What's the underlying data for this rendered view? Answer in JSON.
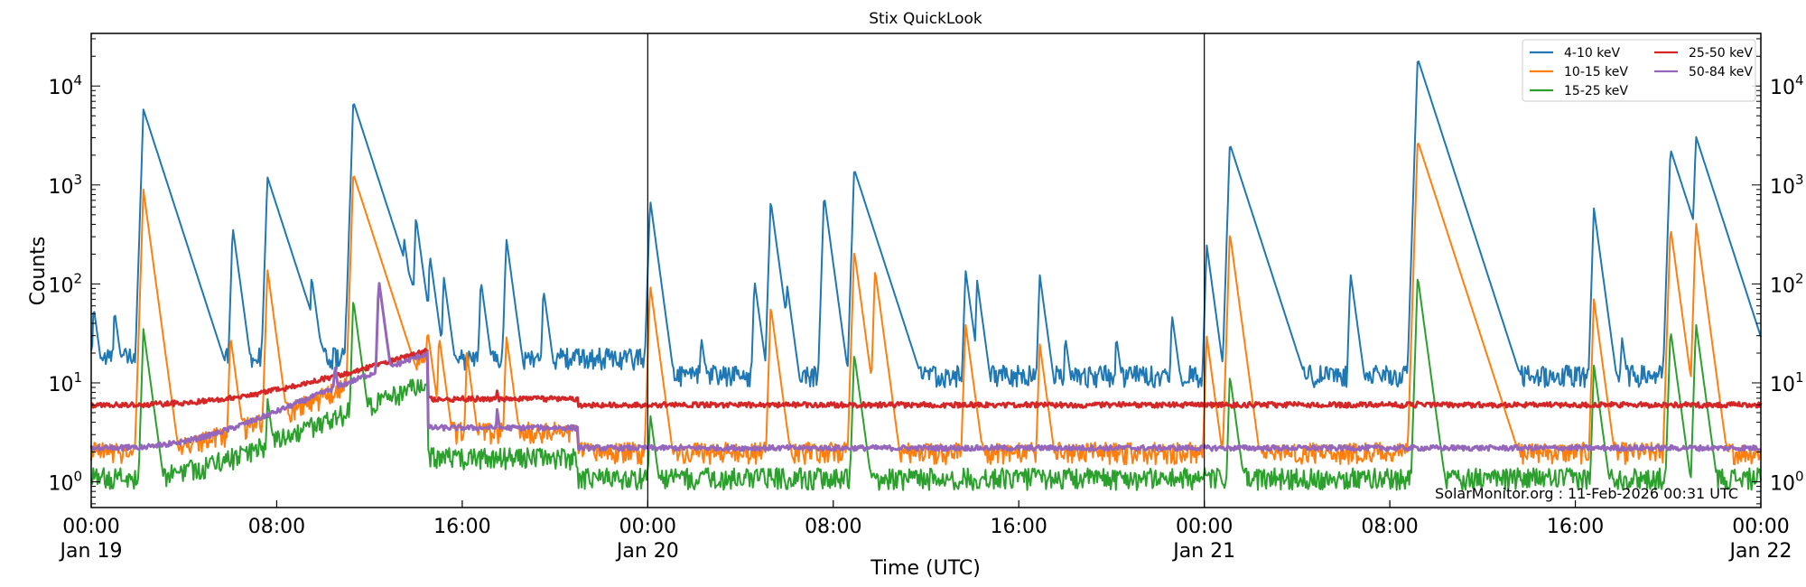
{
  "chart_data": {
    "type": "line",
    "title": "Stix QuickLook",
    "xlabel": "Time (UTC)",
    "ylabel": "Counts",
    "yscale": "log",
    "ylim": [
      0.55,
      34000
    ],
    "xlim_hours": [
      0,
      72
    ],
    "grid": false,
    "legend_position": "upper right",
    "legend_columns": 2,
    "x_ticks": [
      {
        "hour": 0,
        "label": "00:00",
        "sublabel": "Jan 19"
      },
      {
        "hour": 8,
        "label": "08:00",
        "sublabel": ""
      },
      {
        "hour": 16,
        "label": "16:00",
        "sublabel": ""
      },
      {
        "hour": 24,
        "label": "00:00",
        "sublabel": "Jan 20"
      },
      {
        "hour": 32,
        "label": "08:00",
        "sublabel": ""
      },
      {
        "hour": 40,
        "label": "16:00",
        "sublabel": ""
      },
      {
        "hour": 48,
        "label": "00:00",
        "sublabel": "Jan 21"
      },
      {
        "hour": 56,
        "label": "08:00",
        "sublabel": ""
      },
      {
        "hour": 64,
        "label": "16:00",
        "sublabel": ""
      },
      {
        "hour": 72,
        "label": "00:00",
        "sublabel": "Jan 22"
      }
    ],
    "y_ticks": [
      {
        "exp": 0,
        "label": "10",
        "sup": "0"
      },
      {
        "exp": 1,
        "label": "10",
        "sup": "1"
      },
      {
        "exp": 2,
        "label": "10",
        "sup": "2"
      },
      {
        "exp": 3,
        "label": "10",
        "sup": "3"
      },
      {
        "exp": 4,
        "label": "10",
        "sup": "4"
      }
    ],
    "day_separators_hours": [
      24,
      48
    ],
    "series": [
      {
        "name": "4-10 keV",
        "color": "#1f77b4",
        "baseline": 12,
        "peaks": [
          [
            0.1,
            60
          ],
          [
            1,
            55
          ],
          [
            2,
            45
          ],
          [
            2.2,
            520
          ],
          [
            2.25,
            5800
          ],
          [
            2.5,
            1600
          ],
          [
            6.1,
            380
          ],
          [
            7.6,
            1200
          ],
          [
            9.0,
            70
          ],
          [
            9.5,
            120
          ],
          [
            11.0,
            60
          ],
          [
            11.3,
            7000
          ],
          [
            11.6,
            250
          ],
          [
            12.5,
            280
          ],
          [
            13.0,
            300
          ],
          [
            13.5,
            280
          ],
          [
            14.0,
            480
          ],
          [
            14.6,
            200
          ],
          [
            15.2,
            120
          ],
          [
            16.8,
            110
          ],
          [
            17.9,
            290
          ],
          [
            19.5,
            90
          ],
          [
            22.2,
            25
          ],
          [
            24.1,
            720
          ],
          [
            26.3,
            30
          ],
          [
            28.6,
            110
          ],
          [
            29.3,
            700
          ],
          [
            30.0,
            100
          ],
          [
            31.6,
            800
          ],
          [
            32.9,
            1450
          ],
          [
            33.8,
            90
          ],
          [
            37.7,
            140
          ],
          [
            38.2,
            110
          ],
          [
            40.9,
            125
          ],
          [
            42.0,
            30
          ],
          [
            44.2,
            30
          ],
          [
            46.6,
            50
          ],
          [
            48.1,
            250
          ],
          [
            49.1,
            2600
          ],
          [
            51.0,
            30
          ],
          [
            54.3,
            130
          ],
          [
            57.2,
            19000
          ],
          [
            60.8,
            30
          ],
          [
            61.0,
            25
          ],
          [
            64.8,
            580
          ],
          [
            66.0,
            30
          ],
          [
            68.1,
            2300
          ],
          [
            69.2,
            3100
          ],
          [
            70.1,
            200
          ],
          [
            71.9,
            20
          ]
        ]
      },
      {
        "name": "10-15 keV",
        "color": "#ff7f0e",
        "baseline": 2.0,
        "peaks": [
          [
            2.25,
            900
          ],
          [
            2.5,
            180
          ],
          [
            6.0,
            30
          ],
          [
            7.6,
            140
          ],
          [
            11.3,
            1300
          ],
          [
            13.0,
            60
          ],
          [
            14.5,
            35
          ],
          [
            15.0,
            30
          ],
          [
            16.2,
            20
          ],
          [
            17.9,
            30
          ],
          [
            24.1,
            100
          ],
          [
            29.3,
            60
          ],
          [
            32.9,
            220
          ],
          [
            33.8,
            140
          ],
          [
            37.7,
            40
          ],
          [
            40.9,
            25
          ],
          [
            48.1,
            30
          ],
          [
            49.1,
            330
          ],
          [
            57.2,
            2800
          ],
          [
            64.8,
            70
          ],
          [
            68.1,
            380
          ],
          [
            69.2,
            420
          ],
          [
            69.5,
            110
          ]
        ]
      },
      {
        "name": "15-25 keV",
        "color": "#2ca02c",
        "baseline": 1.1,
        "peaks": [
          [
            2.25,
            35
          ],
          [
            7.6,
            7
          ],
          [
            11.3,
            70
          ],
          [
            24.1,
            5
          ],
          [
            32.9,
            20
          ],
          [
            49.1,
            12
          ],
          [
            57.2,
            120
          ],
          [
            64.8,
            15
          ],
          [
            68.1,
            35
          ],
          [
            69.2,
            40
          ]
        ]
      },
      {
        "name": "25-50 keV",
        "color": "#d62728",
        "baseline": 6.0,
        "peaks": [
          [
            17.5,
            8.5
          ],
          [
            19.0,
            7.5
          ],
          [
            57.2,
            7
          ]
        ]
      },
      {
        "name": "50-84 keV",
        "color": "#9467bd",
        "baseline": 2.2,
        "peaks": [
          [
            10.5,
            16
          ],
          [
            12.4,
            110
          ],
          [
            17.5,
            5.5
          ],
          [
            19.1,
            4
          ]
        ]
      }
    ],
    "annotation": "SolarMonitor.org : 11-Feb-2026 00:31 UTC"
  }
}
